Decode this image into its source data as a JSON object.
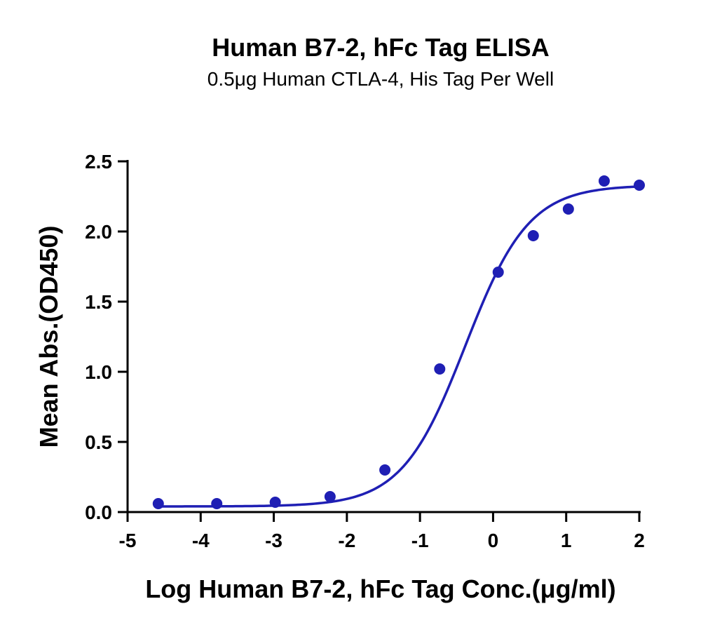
{
  "chart_data": {
    "type": "scatter",
    "title": "Human B7-2, hFc Tag ELISA",
    "subtitle": "0.5μg Human CTLA-4, His Tag Per Well",
    "xlabel": "Log Human B7-2, hFc Tag Conc.(μg/ml)",
    "ylabel": "Mean Abs.(OD450)",
    "xlim": [
      -5,
      2
    ],
    "ylim": [
      0,
      2.5
    ],
    "x_ticks": [
      "-5",
      "-4",
      "-3",
      "-2",
      "-1",
      "0",
      "1",
      "2"
    ],
    "y_ticks": [
      "0.0",
      "0.5",
      "1.0",
      "1.5",
      "2.0",
      "2.5"
    ],
    "grid": false,
    "color": "#1f1fb4",
    "series": [
      {
        "x": [
          -4.58,
          -3.78,
          -2.98,
          -2.23,
          -1.48,
          -0.73,
          0.07,
          0.55,
          1.03,
          1.52,
          2.0
        ],
        "y": [
          0.06,
          0.06,
          0.07,
          0.11,
          0.3,
          1.02,
          1.71,
          1.97,
          2.16,
          2.36,
          2.33
        ]
      }
    ],
    "fit": {
      "model": "4PL",
      "bottom": 0.04,
      "top": 2.33,
      "logEC50": -0.38,
      "hill_slope": 1.0
    }
  }
}
